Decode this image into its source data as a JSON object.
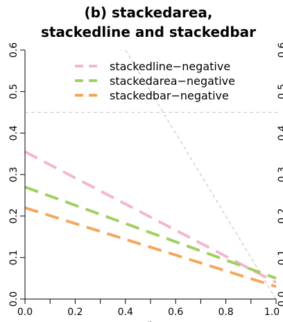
{
  "chart_data": {
    "type": "line",
    "title_lines": [
      "(b) stackedarea,",
      "stackedline and stackedbar"
    ],
    "xlabel": "r",
    "ylabel": "",
    "xlim": [
      0,
      1
    ],
    "ylim": [
      0,
      0.6
    ],
    "x_ticks": [
      "0.0",
      "0.2",
      "0.4",
      "0.6",
      "0.8",
      "1.0"
    ],
    "y_ticks": [
      "0.0",
      "0.1",
      "0.2",
      "0.3",
      "0.4",
      "0.5",
      "0.6"
    ],
    "right_ticks": [
      "0.0",
      "0.1",
      "0.2",
      "0.3",
      "0.4",
      "0.5",
      "0.6"
    ],
    "series": [
      {
        "name": "stackedline−negative",
        "color": "#f4b6cd",
        "x": [
          0,
          1
        ],
        "y": [
          0.355,
          0.04
        ]
      },
      {
        "name": "stackedarea−negative",
        "color": "#9fd05d",
        "x": [
          0,
          1
        ],
        "y": [
          0.27,
          0.05
        ]
      },
      {
        "name": "stackedbar−negative",
        "color": "#f5a65a",
        "x": [
          0,
          1
        ],
        "y": [
          0.22,
          0.03
        ]
      }
    ],
    "reference_lines": [
      {
        "kind": "horizontal",
        "y": 0.45,
        "color": "#c8c8c8"
      },
      {
        "kind": "segment",
        "x": [
          0.4,
          1.0
        ],
        "y": [
          0.6,
          0.0
        ],
        "color": "#c8c8c8"
      }
    ],
    "legend_position": "top-right",
    "grid": false
  }
}
